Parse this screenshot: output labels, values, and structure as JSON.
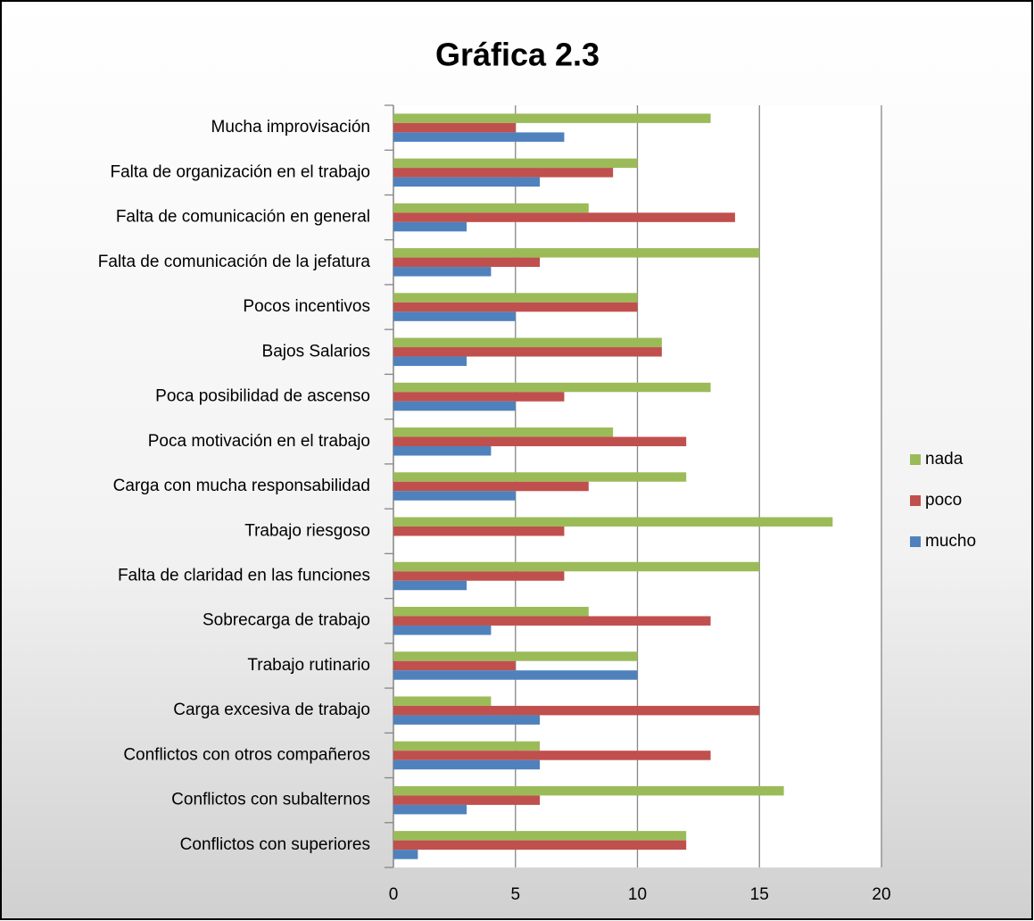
{
  "chart_data": {
    "type": "hbar",
    "title": "Gráfica 2.3",
    "categories": [
      "Mucha improvisación",
      "Falta de organización en el trabajo",
      "Falta de comunicación en general",
      "Falta de comunicación de la jefatura",
      "Pocos incentivos",
      "Bajos Salarios",
      "Poca posibilidad de ascenso",
      "Poca motivación en el trabajo",
      "Carga con mucha responsabilidad",
      "Trabajo riesgoso",
      "Falta de claridad en las funciones",
      "Sobrecarga de trabajo",
      "Trabajo rutinario",
      "Carga excesiva de trabajo",
      "Conflictos con otros compañeros",
      "Conflictos con subalternos",
      "Conflictos con superiores"
    ],
    "series": [
      {
        "name": "nada",
        "color": "#9bbb59",
        "values": [
          13,
          10,
          8,
          15,
          10,
          11,
          13,
          9,
          12,
          18,
          15,
          8,
          10,
          4,
          6,
          16,
          12
        ]
      },
      {
        "name": "poco",
        "color": "#c0504d",
        "values": [
          5,
          9,
          14,
          6,
          10,
          11,
          7,
          12,
          8,
          7,
          7,
          13,
          5,
          15,
          13,
          6,
          12
        ]
      },
      {
        "name": "mucho",
        "color": "#4f81bd",
        "values": [
          7,
          6,
          3,
          4,
          5,
          3,
          5,
          4,
          5,
          0,
          3,
          4,
          10,
          6,
          6,
          3,
          1
        ]
      }
    ],
    "xlim": [
      0,
      20
    ],
    "xticks": [
      0,
      5,
      10,
      15,
      20
    ],
    "grid": true,
    "legend": "right"
  }
}
